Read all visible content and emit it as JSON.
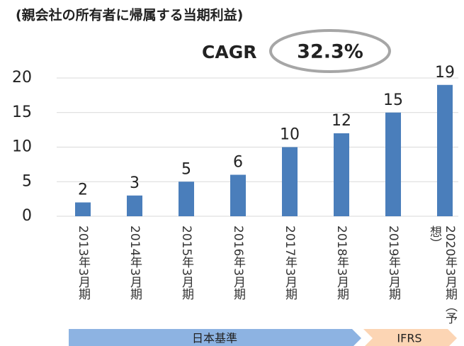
{
  "chart_data": {
    "type": "bar",
    "title": "(親会社の所有者に帰属する当期利益)",
    "annotation": {
      "label": "CAGR",
      "value": "32.3%"
    },
    "categories": [
      "2013年3月期",
      "2014年3月期",
      "2015年3月期",
      "2016年3月期",
      "2017年3月期",
      "2018年3月期",
      "2019年3月期",
      "2020年3月期（予想）"
    ],
    "values": [
      2,
      3,
      5,
      6,
      10,
      12,
      15,
      19
    ],
    "color": "#4a7ebb",
    "ylim": [
      0,
      20
    ],
    "yticks": [
      0,
      5,
      10,
      15,
      20
    ],
    "grid": true,
    "bands": [
      {
        "label": "日本基準",
        "color": "#8db3e2"
      },
      {
        "label": "IFRS",
        "color": "#fcd5b4"
      }
    ]
  }
}
